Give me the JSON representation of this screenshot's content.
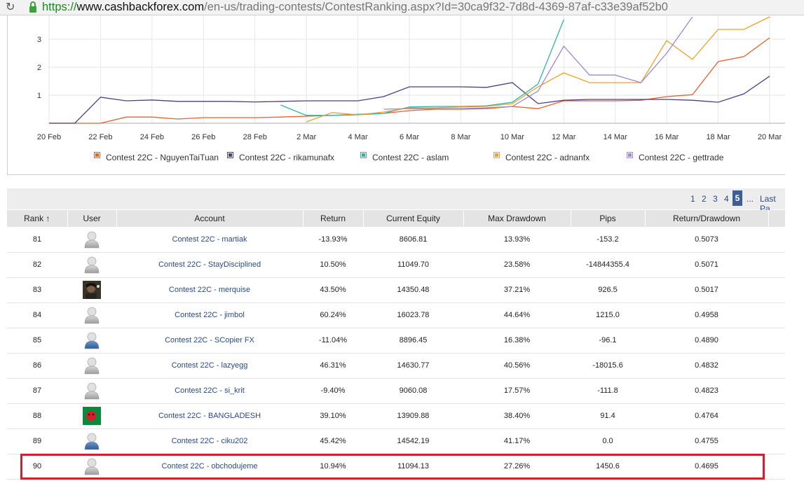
{
  "browser": {
    "url_scheme": "https://",
    "url_host": "www.cashbackforex.com",
    "url_path": "/en-us/trading-contests/ContestRanking.aspx?Id=30ca9f32-7d8d-4369-87af-c33e39af52b0"
  },
  "chart_data": {
    "type": "line",
    "x": [
      "20 Feb",
      "21 Feb",
      "22 Feb",
      "23 Feb",
      "24 Feb",
      "25 Feb",
      "26 Feb",
      "27 Feb",
      "28 Feb",
      "1 Mar",
      "2 Mar",
      "3 Mar",
      "4 Mar",
      "5 Mar",
      "6 Mar",
      "7 Mar",
      "8 Mar",
      "9 Mar",
      "10 Mar",
      "11 Mar",
      "12 Mar",
      "13 Mar",
      "14 Mar",
      "15 Mar",
      "16 Mar",
      "17 Mar",
      "18 Mar",
      "19 Mar",
      "20 Mar"
    ],
    "x_tick_labels": [
      "20 Feb",
      "22 Feb",
      "24 Feb",
      "26 Feb",
      "28 Feb",
      "2 Mar",
      "4 Mar",
      "6 Mar",
      "8 Mar",
      "10 Mar",
      "12 Mar",
      "14 Mar",
      "16 Mar",
      "18 Mar",
      "20 Mar"
    ],
    "y_tick_labels": [
      "1",
      "2",
      "3"
    ],
    "ylim": [
      0,
      3.5
    ],
    "grid": true,
    "legend_position": "bottom",
    "series": [
      {
        "name": "Contest 22C - NguyenTaiTuan",
        "color": "#e8602c",
        "values": [
          0,
          0,
          0,
          0.22,
          0.22,
          0.15,
          0.2,
          0.2,
          0.2,
          0.22,
          0.25,
          0.28,
          0.3,
          0.35,
          0.45,
          0.5,
          0.5,
          0.52,
          0.6,
          0.52,
          0.8,
          0.8,
          0.8,
          0.82,
          0.95,
          1.02,
          2.2,
          2.38,
          3.05
        ]
      },
      {
        "name": "Contest 22C - rikamunafx",
        "color": "#4b3f8c",
        "values": [
          0,
          0,
          0.93,
          0.8,
          0.83,
          0.78,
          0.78,
          0.78,
          0.76,
          0.78,
          0.8,
          0.8,
          0.8,
          0.95,
          1.3,
          1.3,
          1.3,
          1.28,
          1.45,
          0.7,
          0.82,
          0.85,
          0.85,
          0.85,
          0.85,
          0.82,
          0.75,
          1.05,
          1.68
        ]
      },
      {
        "name": "Contest 22C - aslam",
        "color": "#2fb4a8",
        "values": [
          null,
          null,
          null,
          null,
          null,
          null,
          null,
          null,
          null,
          0.65,
          0.28,
          0.28,
          0.32,
          0.35,
          0.58,
          0.6,
          0.6,
          0.62,
          0.75,
          1.4,
          3.7,
          null,
          null,
          null,
          null,
          null,
          null,
          null,
          null
        ]
      },
      {
        "name": "Contest 22C - adnanfx",
        "color": "#f2a02a",
        "values": [
          null,
          null,
          null,
          null,
          null,
          null,
          null,
          null,
          null,
          null,
          0.05,
          0.38,
          0.3,
          0.4,
          0.55,
          0.55,
          0.58,
          0.6,
          0.7,
          1.3,
          1.8,
          1.45,
          1.45,
          1.45,
          2.95,
          2.28,
          3.35,
          3.35,
          3.8
        ]
      },
      {
        "name": "Contest 22C - gettrade",
        "color": "#9b88d6",
        "values": [
          null,
          null,
          null,
          null,
          null,
          null,
          null,
          null,
          null,
          null,
          null,
          null,
          null,
          0.5,
          0.52,
          0.52,
          0.52,
          0.55,
          0.6,
          1.15,
          2.75,
          1.72,
          1.72,
          1.45,
          2.5,
          3.8,
          null,
          null,
          null
        ]
      }
    ]
  },
  "pagination": {
    "pages": [
      "1",
      "2",
      "3",
      "4",
      "5"
    ],
    "current": "5",
    "ellipsis": "...",
    "last": "Last Pa"
  },
  "table": {
    "headers": {
      "rank": "Rank ↑",
      "user": "User",
      "account": "Account",
      "return": "Return",
      "equity": "Current Equity",
      "drawdown": "Max Drawdown",
      "pips": "Pips",
      "ratio": "Return/Drawdown"
    },
    "rows": [
      {
        "rank": "81",
        "avatar": "default-user-icon",
        "account": "Contest 22C - martiak",
        "return": "-13.93%",
        "equity": "8606.81",
        "drawdown": "13.93%",
        "pips": "-153.2",
        "ratio": "0.5073"
      },
      {
        "rank": "82",
        "avatar": "default-user-icon",
        "account": "Contest 22C - StayDisciplined",
        "return": "10.50%",
        "equity": "11049.70",
        "drawdown": "23.58%",
        "pips": "-14844355.4",
        "ratio": "0.5071"
      },
      {
        "rank": "83",
        "avatar": "photo-avatar",
        "account": "Contest 22C - merquise",
        "return": "43.50%",
        "equity": "14350.48",
        "drawdown": "37.21%",
        "pips": "926.5",
        "ratio": "0.5017"
      },
      {
        "rank": "84",
        "avatar": "default-user-icon",
        "account": "Contest 22C - jimbol",
        "return": "60.24%",
        "equity": "16023.78",
        "drawdown": "44.64%",
        "pips": "1215.0",
        "ratio": "0.4958"
      },
      {
        "rank": "85",
        "avatar": "blue-user-icon",
        "account": "Contest 22C - SCopier FX",
        "return": "-11.04%",
        "equity": "8896.45",
        "drawdown": "16.38%",
        "pips": "-96.1",
        "ratio": "0.4890"
      },
      {
        "rank": "86",
        "avatar": "default-user-icon",
        "account": "Contest 22C - lazyegg",
        "return": "46.31%",
        "equity": "14630.77",
        "drawdown": "40.56%",
        "pips": "-18015.6",
        "ratio": "0.4832"
      },
      {
        "rank": "87",
        "avatar": "default-user-icon",
        "account": "Contest 22C - si_krit",
        "return": "-9.40%",
        "equity": "9060.08",
        "drawdown": "17.57%",
        "pips": "-111.8",
        "ratio": "0.4823"
      },
      {
        "rank": "88",
        "avatar": "flag-avatar",
        "account": "Contest 22C - BANGLADESH",
        "return": "39.10%",
        "equity": "13909.88",
        "drawdown": "38.40%",
        "pips": "91.4",
        "ratio": "0.4764"
      },
      {
        "rank": "89",
        "avatar": "blue-user-icon",
        "account": "Contest 22C - ciku202",
        "return": "45.42%",
        "equity": "14542.19",
        "drawdown": "41.17%",
        "pips": "0.0",
        "ratio": "0.4755"
      },
      {
        "rank": "90",
        "avatar": "default-user-icon",
        "account": "Contest 22C - obchodujeme",
        "return": "10.94%",
        "equity": "11094.13",
        "drawdown": "27.26%",
        "pips": "1450.6",
        "ratio": "0.4695",
        "highlighted": true
      }
    ]
  }
}
